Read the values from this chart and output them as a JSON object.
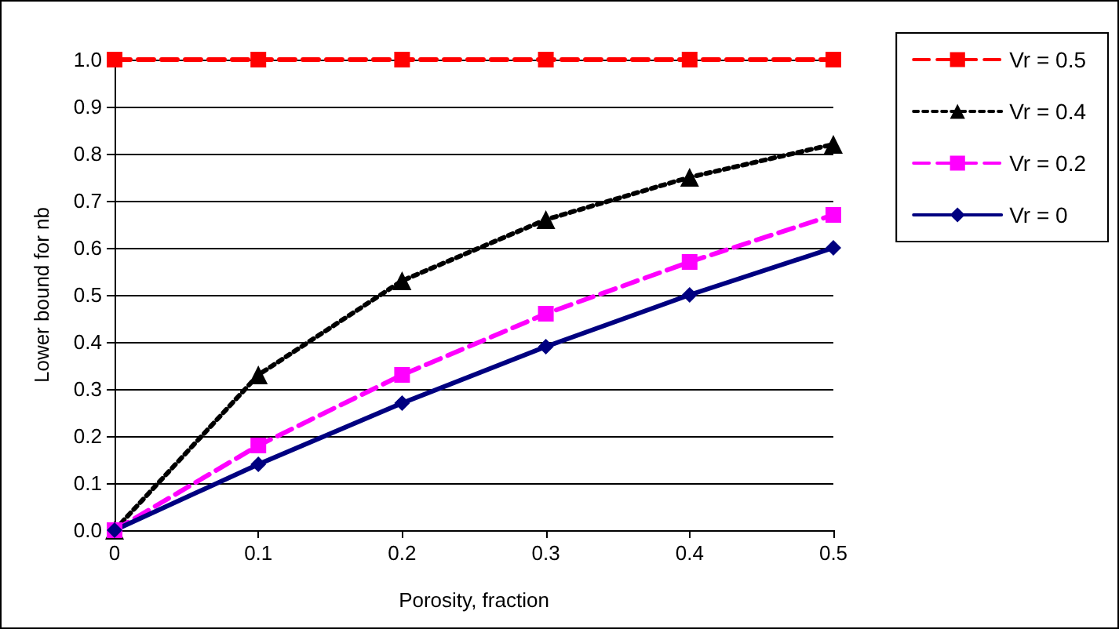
{
  "chart_data": {
    "type": "line",
    "xlabel": "Porosity, fraction",
    "ylabel": "Lower bound for nb",
    "x": [
      0,
      0.1,
      0.2,
      0.3,
      0.4,
      0.5
    ],
    "series": [
      {
        "name": "Vr = 0.5",
        "color": "#ff0000",
        "marker": "square",
        "line_style": "dashed",
        "values": [
          1.0,
          1.0,
          1.0,
          1.0,
          1.0,
          1.0
        ]
      },
      {
        "name": "Vr = 0.4",
        "color": "#000000",
        "marker": "triangle",
        "line_style": "dotted",
        "values": [
          0,
          0.33,
          0.53,
          0.66,
          0.75,
          0.82
        ]
      },
      {
        "name": "Vr = 0.2",
        "color": "#ff00ff",
        "marker": "square",
        "line_style": "dashed",
        "values": [
          0,
          0.18,
          0.33,
          0.46,
          0.57,
          0.67
        ]
      },
      {
        "name": "Vr = 0",
        "color": "#000080",
        "marker": "diamond",
        "line_style": "solid",
        "values": [
          0,
          0.14,
          0.27,
          0.39,
          0.5,
          0.6
        ]
      }
    ],
    "xlim": [
      0,
      0.5
    ],
    "xticks": [
      0,
      0.1,
      0.2,
      0.3,
      0.4,
      0.5
    ],
    "ylim": [
      0,
      1.0
    ],
    "yticks": [
      {
        "value": 0,
        "label": "0.0"
      },
      {
        "value": 0.1,
        "label": "0.1"
      },
      {
        "value": 0.2,
        "label": "0.2"
      },
      {
        "value": 0.3,
        "label": "0.3"
      },
      {
        "value": 0.4,
        "label": "0.4"
      },
      {
        "value": 0.5,
        "label": "0.5"
      },
      {
        "value": 0.6,
        "label": "0.6"
      },
      {
        "value": 0.7,
        "label": "0.7"
      },
      {
        "value": 0.8,
        "label": "0.8"
      },
      {
        "value": 0.9,
        "label": "0.9"
      },
      {
        "value": 1.0,
        "label": "1.0"
      }
    ],
    "grid": "y",
    "legend": "right"
  }
}
